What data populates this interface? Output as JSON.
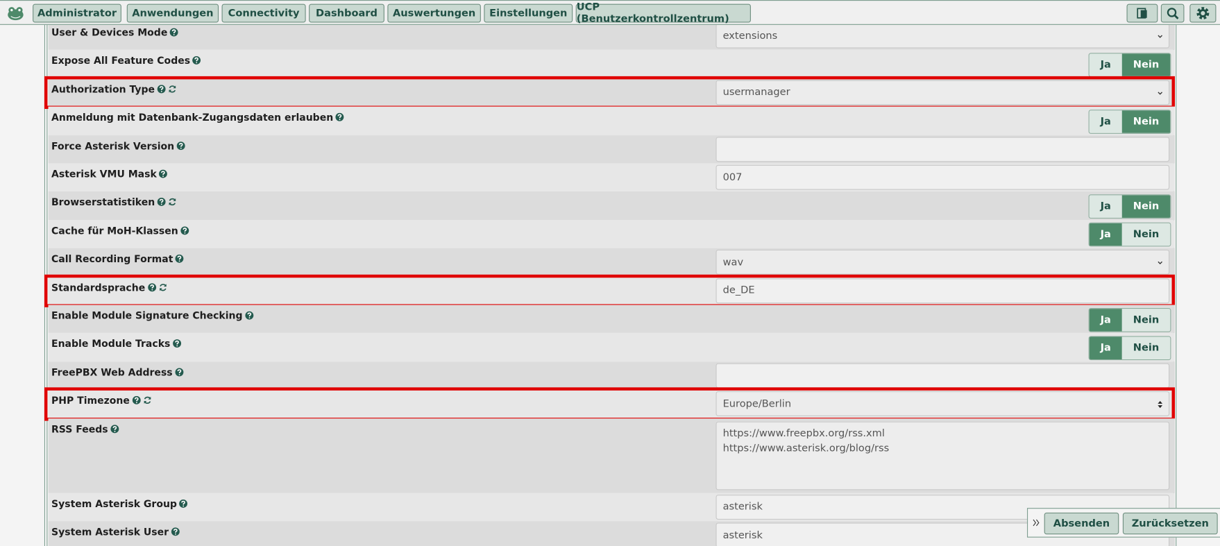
{
  "nav": {
    "items": [
      "Administrator",
      "Anwendungen",
      "Connectivity",
      "Dashboard",
      "Auswertungen",
      "Einstellungen",
      "UCP (Benutzerkontrollzentrum)"
    ]
  },
  "toggle_labels": [
    "Ja",
    "Nein"
  ],
  "settings": [
    {
      "label": "User & Devices Mode",
      "control": "select",
      "value": "extensions",
      "refresh": false,
      "highlight": false
    },
    {
      "label": "Expose All Feature Codes",
      "control": "toggle",
      "selected": 1,
      "refresh": false,
      "highlight": false
    },
    {
      "label": "Authorization Type",
      "control": "select",
      "value": "usermanager",
      "refresh": true,
      "highlight": true
    },
    {
      "label": "Anmeldung mit Datenbank-Zugangsdaten erlauben",
      "control": "toggle",
      "selected": 1,
      "refresh": false,
      "highlight": false
    },
    {
      "label": "Force Asterisk Version",
      "control": "input",
      "refresh": false,
      "highlight": false
    },
    {
      "label": "Asterisk VMU Mask",
      "control": "input",
      "value": "007",
      "refresh": false,
      "highlight": false
    },
    {
      "label": "Browserstatistiken",
      "control": "toggle",
      "selected": 1,
      "refresh": true,
      "highlight": false
    },
    {
      "label": "Cache für MoH-Klassen",
      "control": "toggle",
      "selected": 0,
      "refresh": false,
      "highlight": false
    },
    {
      "label": "Call Recording Format",
      "control": "select",
      "value": "wav",
      "refresh": false,
      "highlight": false
    },
    {
      "label": "Standardsprache",
      "control": "input",
      "value": "de_DE",
      "refresh": true,
      "highlight": true
    },
    {
      "label": "Enable Module Signature Checking",
      "control": "toggle",
      "selected": 0,
      "refresh": false,
      "highlight": false
    },
    {
      "label": "Enable Module Tracks",
      "control": "toggle",
      "selected": 0,
      "refresh": false,
      "highlight": false
    },
    {
      "label": "FreePBX Web Address",
      "control": "input",
      "refresh": false,
      "highlight": false
    },
    {
      "label": "PHP Timezone",
      "control": "spinner",
      "value": "Europe/Berlin",
      "refresh": true,
      "highlight": true
    },
    {
      "label": "RSS Feeds",
      "control": "textarea",
      "lines": [
        "https://www.freepbx.org/rss.xml",
        "https://www.asterisk.org/blog/rss"
      ],
      "refresh": false,
      "highlight": false
    },
    {
      "label": "System Asterisk Group",
      "control": "input",
      "value": "asterisk",
      "refresh": false,
      "highlight": false
    },
    {
      "label": "System Asterisk User",
      "control": "input",
      "value": "asterisk",
      "refresh": false,
      "highlight": false
    }
  ],
  "actions": [
    "Absenden",
    "Zurücksetzen"
  ]
}
